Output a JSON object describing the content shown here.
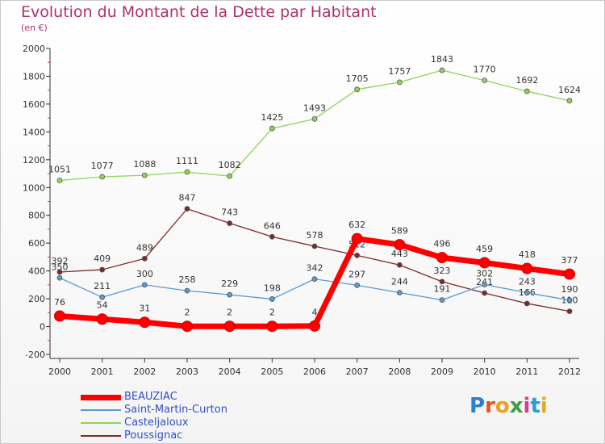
{
  "header": {
    "title": "Evolution du Montant de la Dette par Habitant",
    "subtitle": "(en €)"
  },
  "brand": {
    "letters": [
      "P",
      "r",
      "o",
      "x",
      "i",
      "t",
      "i"
    ],
    "colors": [
      "#2a7fd4",
      "#e8541e",
      "#f0a020",
      "#3aa040",
      "#e03a8a",
      "#2a9fd4",
      "#e8a81e"
    ]
  },
  "chart_data": {
    "type": "line",
    "title": "Evolution du Montant de la Dette par Habitant",
    "subtitle": "(en €)",
    "x": [
      "2000",
      "2001",
      "2002",
      "2003",
      "2004",
      "2005",
      "2006",
      "2007",
      "2008",
      "2009",
      "2010",
      "2011",
      "2012"
    ],
    "ylim": [
      -200,
      2000
    ],
    "yticks": [
      "-200",
      "0",
      "200",
      "400",
      "600",
      "800",
      "1000",
      "1200",
      "1400",
      "1600",
      "1800",
      "2000"
    ],
    "grid": false,
    "legend_position": "bottom-left",
    "series": [
      {
        "name": "Casteljaloux",
        "color": "#8ed45a",
        "values": [
          1051,
          1077,
          1088,
          1111,
          1082,
          1425,
          1493,
          1705,
          1757,
          1843,
          1770,
          1692,
          1624
        ],
        "labels": [
          "1051",
          "1077",
          "1088",
          "1111",
          "1082",
          "1425",
          "1493",
          "1705",
          "1757",
          "1843",
          "1770",
          "1692",
          "1624"
        ]
      },
      {
        "name": "Poussignac",
        "color": "#7a2a2a",
        "values": [
          392,
          409,
          489,
          847,
          743,
          646,
          578,
          512,
          443,
          323,
          241,
          166,
          110
        ],
        "labels": [
          "392",
          "409",
          "489",
          "847",
          "743",
          "646",
          "578",
          "512",
          "443",
          "323",
          "241",
          "166",
          "110"
        ]
      },
      {
        "name": "Saint-Martin-Curton",
        "color": "#5a9ad0",
        "values": [
          350,
          211,
          300,
          258,
          229,
          198,
          342,
          297,
          244,
          191,
          302,
          243,
          190
        ],
        "labels": [
          "350",
          "211",
          "300",
          "258",
          "229",
          "198",
          "342",
          "297",
          "244",
          "191",
          "302",
          "243",
          "190"
        ]
      },
      {
        "name": "BEAUZIAC",
        "color": "#ff0000",
        "values": [
          76,
          54,
          31,
          2,
          2,
          2,
          4,
          632,
          589,
          496,
          459,
          418,
          377
        ],
        "labels": [
          "76",
          "54",
          "31",
          "2",
          "2",
          "2",
          "4",
          "632",
          "589",
          "496",
          "459",
          "418",
          "377"
        ]
      }
    ],
    "legend_order": [
      "BEAUZIAC",
      "Saint-Martin-Curton",
      "Casteljaloux",
      "Poussignac"
    ]
  }
}
